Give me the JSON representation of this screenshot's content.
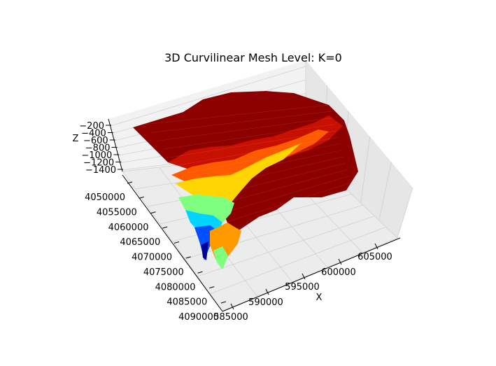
{
  "chart_data": {
    "type": "surface3d",
    "title": "3D Curvilinear Mesh Level: K=0",
    "xlabel": "X",
    "ylabel": "",
    "zlabel": "Z",
    "x_ticks": [
      "585000",
      "590000",
      "595000",
      "600000",
      "605000"
    ],
    "y_ticks": [
      "4050000",
      "4055000",
      "4060000",
      "4065000",
      "4070000",
      "4075000",
      "4080000",
      "4085000",
      "4090000"
    ],
    "z_ticks": [
      "−200",
      "−400",
      "−600",
      "−800",
      "−1000",
      "−1200",
      "−1400"
    ],
    "xlim": [
      585000,
      609000
    ],
    "ylim": [
      4050000,
      4092000
    ],
    "zlim": [
      -1500,
      -100
    ],
    "colormap": "jet",
    "grid": true
  }
}
